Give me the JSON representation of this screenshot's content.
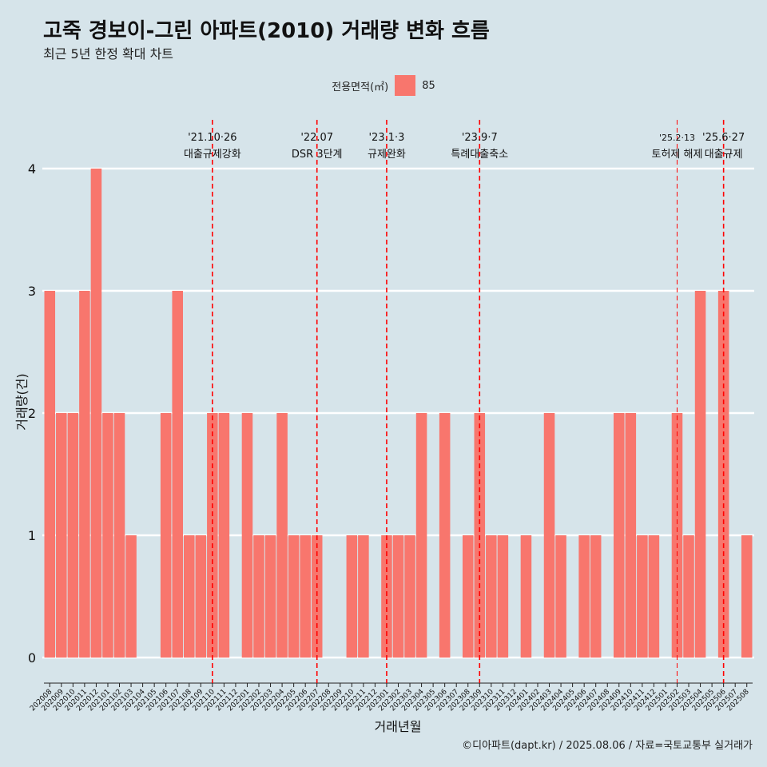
{
  "title": "고죽 경보이-그린 아파트(2010) 거래량 변화 흐름",
  "subtitle": "최근 5년 한정 확대 차트",
  "caption": "©디아파트(dapt.kr) / 2025.08.06 / 자료=국토교통부 실거래가",
  "colors": {
    "bar": "#f8766d",
    "background": "#d6e4ea",
    "grid": "#ffffff",
    "event_line": "#ff0000"
  },
  "chart_data": {
    "type": "bar",
    "xlabel": "거래년월",
    "ylabel": "거래량(건)",
    "ylim": [
      0,
      4
    ],
    "y_ticks": [
      0,
      1,
      2,
      3,
      4
    ],
    "legend": {
      "title": "전용면적(㎡)",
      "entries": [
        "85"
      ],
      "position": "top"
    },
    "grid": true,
    "categories": [
      "202008",
      "202009",
      "202010",
      "202011",
      "202012",
      "202101",
      "202102",
      "202103",
      "202104",
      "202105",
      "202106",
      "202107",
      "202108",
      "202109",
      "202110",
      "202111",
      "202112",
      "202201",
      "202202",
      "202203",
      "202204",
      "202205",
      "202206",
      "202207",
      "202208",
      "202209",
      "202210",
      "202211",
      "202212",
      "202301",
      "202302",
      "202303",
      "202304",
      "202305",
      "202306",
      "202307",
      "202308",
      "202309",
      "202310",
      "202311",
      "202312",
      "202401",
      "202402",
      "202403",
      "202404",
      "202405",
      "202406",
      "202407",
      "202408",
      "202409",
      "202410",
      "202411",
      "202412",
      "202501",
      "202502",
      "202503",
      "202504",
      "202505",
      "202506",
      "202507",
      "202508"
    ],
    "series": [
      {
        "name": "85",
        "values": [
          3,
          2,
          2,
          3,
          4,
          2,
          2,
          1,
          0,
          0,
          2,
          3,
          1,
          1,
          2,
          2,
          0,
          2,
          1,
          1,
          2,
          1,
          1,
          1,
          0,
          0,
          1,
          1,
          0,
          1,
          1,
          1,
          2,
          0,
          2,
          0,
          1,
          2,
          1,
          1,
          0,
          1,
          0,
          2,
          1,
          0,
          1,
          1,
          0,
          2,
          2,
          1,
          1,
          0,
          2,
          1,
          3,
          0,
          3,
          0,
          1
        ]
      }
    ],
    "events": [
      {
        "category": "202110",
        "date": "'21.10·26",
        "label": "대출규제강화"
      },
      {
        "category": "202207",
        "date": "'22.07",
        "label": "DSR 3단계"
      },
      {
        "category": "202301",
        "date": "'23.1·3",
        "label": "규제완화"
      },
      {
        "category": "202309",
        "date": "'23.9·7",
        "label": "특례대출축소"
      },
      {
        "category": "202502",
        "date": "'25.2·13",
        "label": "토허제 해제"
      },
      {
        "category": "202506",
        "date": "'25.6·27",
        "label": "대출규제"
      }
    ]
  }
}
